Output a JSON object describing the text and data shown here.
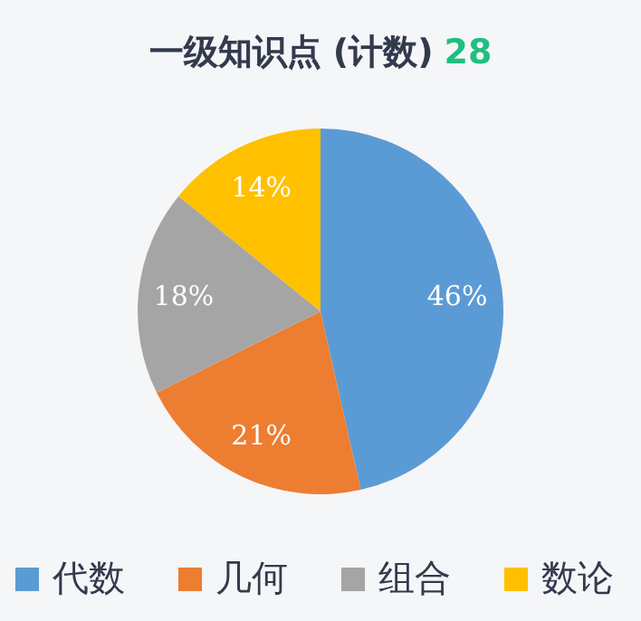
{
  "chart_data": {
    "type": "pie",
    "title": "一级知识点 (计数)",
    "annotations": [
      "28"
    ],
    "categories": [
      "代数",
      "几何",
      "组合",
      "数论"
    ],
    "values": [
      46,
      21,
      18,
      14
    ],
    "colors": [
      "#5b9bd5",
      "#ed7d31",
      "#a5a5a5",
      "#ffc000"
    ],
    "value_labels": [
      "46%",
      "21%",
      "18%",
      "14%"
    ],
    "legend": "bottom"
  }
}
